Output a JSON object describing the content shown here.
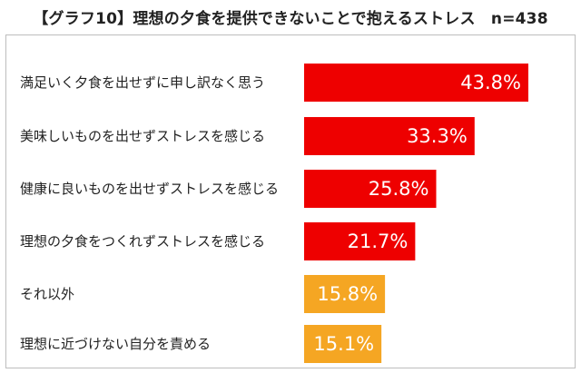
{
  "title": "【グラフ10】理想の夕食を提供できないことで抱えるストレス　n=438",
  "chart_data": {
    "type": "bar",
    "orientation": "horizontal",
    "title": "【グラフ10】理想の夕食を提供できないことで抱えるストレス　n=438",
    "categories": [
      "満足いく夕食を出せずに申し訳なく思う",
      "美味しいものを出せずストレスを感じる",
      "健康に良いものを出せずストレスを感じる",
      "理想の夕食をつくれずストレスを感じる",
      "それ以外",
      "理想に近づけない自分を責める"
    ],
    "values": [
      43.8,
      33.3,
      25.8,
      21.7,
      15.8,
      15.1
    ],
    "value_labels": [
      "43.8%",
      "33.3%",
      "25.8%",
      "21.7%",
      "15.8%",
      "15.1%"
    ],
    "bar_colors": [
      "#ee0000",
      "#ee0000",
      "#ee0000",
      "#ee0000",
      "#f5a623",
      "#f5a623"
    ],
    "xlim": [
      0,
      50
    ],
    "grid": false,
    "legend": "none"
  }
}
